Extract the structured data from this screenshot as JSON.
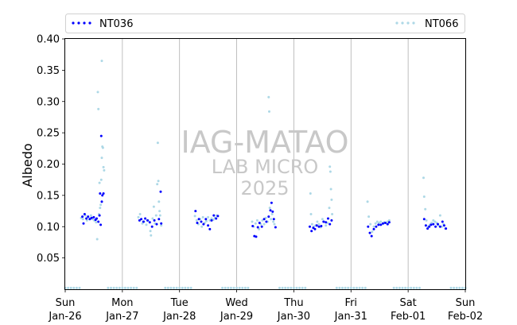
{
  "chart_data": {
    "type": "scatter",
    "ylabel": "Albedo",
    "ylim": [
      0.0,
      0.4
    ],
    "xlim": [
      "2025-01-26",
      "2025-02-02"
    ],
    "yticks": [
      0.05,
      0.1,
      0.15,
      0.2,
      0.25,
      0.3,
      0.35,
      0.4
    ],
    "ytick_labels": [
      "0.05",
      "0.10",
      "0.15",
      "0.20",
      "0.25",
      "0.30",
      "0.35",
      "0.40"
    ],
    "xticks": [
      {
        "day": "Sun",
        "date": "Jan-26"
      },
      {
        "day": "Mon",
        "date": "Jan-27"
      },
      {
        "day": "Tue",
        "date": "Jan-28"
      },
      {
        "day": "Wed",
        "date": "Jan-29"
      },
      {
        "day": "Thu",
        "date": "Jan-30"
      },
      {
        "day": "Fri",
        "date": "Jan-31"
      },
      {
        "day": "Sat",
        "date": "Feb-01"
      },
      {
        "day": "Sun",
        "date": "Feb-02"
      }
    ],
    "grid": "vertical",
    "legend_position": "top",
    "watermark": [
      "IAG-MATAO",
      "LAB MICRO",
      "2025"
    ],
    "series": [
      {
        "name": "NT036",
        "color": "#0000ff",
        "points": [
          [
            0.3,
            0.116
          ],
          [
            0.32,
            0.105
          ],
          [
            0.34,
            0.12
          ],
          [
            0.37,
            0.113
          ],
          [
            0.4,
            0.116
          ],
          [
            0.43,
            0.112
          ],
          [
            0.46,
            0.114
          ],
          [
            0.5,
            0.115
          ],
          [
            0.53,
            0.111
          ],
          [
            0.55,
            0.113
          ],
          [
            0.58,
            0.108
          ],
          [
            0.6,
            0.118
          ],
          [
            0.61,
            0.153
          ],
          [
            0.62,
            0.103
          ],
          [
            0.63,
            0.245
          ],
          [
            0.64,
            0.14
          ],
          [
            0.65,
            0.15
          ],
          [
            0.67,
            0.153
          ],
          [
            1.3,
            0.11
          ],
          [
            1.33,
            0.112
          ],
          [
            1.37,
            0.108
          ],
          [
            1.4,
            0.113
          ],
          [
            1.44,
            0.11
          ],
          [
            1.48,
            0.107
          ],
          [
            1.52,
            0.1
          ],
          [
            1.56,
            0.11
          ],
          [
            1.6,
            0.104
          ],
          [
            1.64,
            0.112
          ],
          [
            1.67,
            0.156
          ],
          [
            1.68,
            0.105
          ],
          [
            2.28,
            0.125
          ],
          [
            2.31,
            0.106
          ],
          [
            2.34,
            0.112
          ],
          [
            2.38,
            0.108
          ],
          [
            2.42,
            0.104
          ],
          [
            2.46,
            0.112
          ],
          [
            2.5,
            0.102
          ],
          [
            2.53,
            0.096
          ],
          [
            2.56,
            0.11
          ],
          [
            2.6,
            0.118
          ],
          [
            2.64,
            0.113
          ],
          [
            2.67,
            0.117
          ],
          [
            3.28,
            0.101
          ],
          [
            3.31,
            0.085
          ],
          [
            3.34,
            0.084
          ],
          [
            3.37,
            0.099
          ],
          [
            3.4,
            0.106
          ],
          [
            3.44,
            0.1
          ],
          [
            3.48,
            0.112
          ],
          [
            3.52,
            0.108
          ],
          [
            3.56,
            0.116
          ],
          [
            3.59,
            0.126
          ],
          [
            3.61,
            0.138
          ],
          [
            3.63,
            0.124
          ],
          [
            3.65,
            0.112
          ],
          [
            3.68,
            0.099
          ],
          [
            4.28,
            0.1
          ],
          [
            4.31,
            0.093
          ],
          [
            4.34,
            0.098
          ],
          [
            4.37,
            0.096
          ],
          [
            4.4,
            0.102
          ],
          [
            4.44,
            0.1
          ],
          [
            4.48,
            0.101
          ],
          [
            4.52,
            0.108
          ],
          [
            4.56,
            0.107
          ],
          [
            4.6,
            0.113
          ],
          [
            4.63,
            0.104
          ],
          [
            4.66,
            0.11
          ],
          [
            5.3,
            0.1
          ],
          [
            5.33,
            0.09
          ],
          [
            5.36,
            0.085
          ],
          [
            5.4,
            0.096
          ],
          [
            5.44,
            0.1
          ],
          [
            5.48,
            0.103
          ],
          [
            5.52,
            0.103
          ],
          [
            5.56,
            0.105
          ],
          [
            5.6,
            0.106
          ],
          [
            5.64,
            0.104
          ],
          [
            5.67,
            0.107
          ],
          [
            6.28,
            0.112
          ],
          [
            6.31,
            0.102
          ],
          [
            6.34,
            0.097
          ],
          [
            6.37,
            0.1
          ],
          [
            6.4,
            0.103
          ],
          [
            6.44,
            0.104
          ],
          [
            6.48,
            0.1
          ],
          [
            6.52,
            0.104
          ],
          [
            6.56,
            0.1
          ],
          [
            6.6,
            0.108
          ],
          [
            6.63,
            0.102
          ],
          [
            6.66,
            0.097
          ]
        ]
      },
      {
        "name": "NT066",
        "color": "#add8e6",
        "points": [
          [
            0.0,
            0.002
          ],
          [
            0.05,
            0.002
          ],
          [
            0.1,
            0.002
          ],
          [
            0.15,
            0.002
          ],
          [
            0.2,
            0.002
          ],
          [
            0.25,
            0.002
          ],
          [
            0.28,
            0.114
          ],
          [
            0.31,
            0.112
          ],
          [
            0.35,
            0.118
          ],
          [
            0.38,
            0.11
          ],
          [
            0.42,
            0.113
          ],
          [
            0.45,
            0.118
          ],
          [
            0.48,
            0.112
          ],
          [
            0.51,
            0.11
          ],
          [
            0.54,
            0.107
          ],
          [
            0.56,
            0.08
          ],
          [
            0.57,
            0.315
          ],
          [
            0.58,
            0.288
          ],
          [
            0.59,
            0.12
          ],
          [
            0.6,
            0.17
          ],
          [
            0.61,
            0.13
          ],
          [
            0.62,
            0.135
          ],
          [
            0.63,
            0.175
          ],
          [
            0.64,
            0.21
          ],
          [
            0.64,
            0.365
          ],
          [
            0.65,
            0.228
          ],
          [
            0.66,
            0.226
          ],
          [
            0.67,
            0.195
          ],
          [
            0.68,
            0.19
          ],
          [
            0.75,
            0.002
          ],
          [
            0.8,
            0.002
          ],
          [
            0.85,
            0.002
          ],
          [
            0.9,
            0.002
          ],
          [
            0.95,
            0.002
          ],
          [
            1.0,
            0.002
          ],
          [
            1.05,
            0.002
          ],
          [
            1.1,
            0.002
          ],
          [
            1.15,
            0.002
          ],
          [
            1.2,
            0.002
          ],
          [
            1.25,
            0.002
          ],
          [
            1.28,
            0.115
          ],
          [
            1.31,
            0.12
          ],
          [
            1.35,
            0.105
          ],
          [
            1.38,
            0.108
          ],
          [
            1.42,
            0.103
          ],
          [
            1.45,
            0.11
          ],
          [
            1.49,
            0.093
          ],
          [
            1.5,
            0.086
          ],
          [
            1.53,
            0.113
          ],
          [
            1.55,
            0.132
          ],
          [
            1.57,
            0.105
          ],
          [
            1.59,
            0.118
          ],
          [
            1.61,
            0.168
          ],
          [
            1.62,
            0.234
          ],
          [
            1.63,
            0.173
          ],
          [
            1.64,
            0.14
          ],
          [
            1.65,
            0.125
          ],
          [
            1.66,
            0.118
          ],
          [
            1.68,
            0.102
          ],
          [
            1.75,
            0.002
          ],
          [
            1.8,
            0.002
          ],
          [
            1.85,
            0.002
          ],
          [
            1.9,
            0.002
          ],
          [
            1.95,
            0.002
          ],
          [
            2.0,
            0.002
          ],
          [
            2.05,
            0.002
          ],
          [
            2.1,
            0.002
          ],
          [
            2.15,
            0.002
          ],
          [
            2.2,
            0.002
          ],
          [
            2.27,
            0.117
          ],
          [
            2.3,
            0.11
          ],
          [
            2.33,
            0.104
          ],
          [
            2.36,
            0.112
          ],
          [
            2.39,
            0.1
          ],
          [
            2.41,
            0.115
          ],
          [
            2.44,
            0.106
          ],
          [
            2.47,
            0.109
          ],
          [
            2.5,
            0.115
          ],
          [
            2.53,
            0.11
          ],
          [
            2.56,
            0.113
          ],
          [
            2.59,
            0.111
          ],
          [
            2.62,
            0.114
          ],
          [
            2.65,
            0.118
          ],
          [
            2.75,
            0.002
          ],
          [
            2.8,
            0.002
          ],
          [
            2.85,
            0.002
          ],
          [
            2.9,
            0.002
          ],
          [
            2.95,
            0.002
          ],
          [
            3.0,
            0.002
          ],
          [
            3.05,
            0.002
          ],
          [
            3.1,
            0.002
          ],
          [
            3.15,
            0.002
          ],
          [
            3.2,
            0.002
          ],
          [
            3.27,
            0.108
          ],
          [
            3.3,
            0.1
          ],
          [
            3.33,
            0.105
          ],
          [
            3.36,
            0.11
          ],
          [
            3.39,
            0.096
          ],
          [
            3.42,
            0.104
          ],
          [
            3.45,
            0.11
          ],
          [
            3.48,
            0.104
          ],
          [
            3.51,
            0.114
          ],
          [
            3.54,
            0.108
          ],
          [
            3.56,
            0.307
          ],
          [
            3.57,
            0.284
          ],
          [
            3.58,
            0.13
          ],
          [
            3.6,
            0.112
          ],
          [
            3.62,
            0.12
          ],
          [
            3.64,
            0.108
          ],
          [
            3.66,
            0.104
          ],
          [
            3.75,
            0.002
          ],
          [
            3.8,
            0.002
          ],
          [
            3.85,
            0.002
          ],
          [
            3.9,
            0.002
          ],
          [
            3.95,
            0.002
          ],
          [
            4.0,
            0.002
          ],
          [
            4.05,
            0.002
          ],
          [
            4.1,
            0.002
          ],
          [
            4.15,
            0.002
          ],
          [
            4.2,
            0.002
          ],
          [
            4.29,
            0.153
          ],
          [
            4.3,
            0.12
          ],
          [
            4.32,
            0.104
          ],
          [
            4.35,
            0.1
          ],
          [
            4.38,
            0.102
          ],
          [
            4.41,
            0.108
          ],
          [
            4.44,
            0.104
          ],
          [
            4.47,
            0.099
          ],
          [
            4.5,
            0.112
          ],
          [
            4.53,
            0.108
          ],
          [
            4.56,
            0.102
          ],
          [
            4.59,
            0.106
          ],
          [
            4.62,
            0.13
          ],
          [
            4.63,
            0.196
          ],
          [
            4.64,
            0.188
          ],
          [
            4.65,
            0.16
          ],
          [
            4.66,
            0.143
          ],
          [
            4.67,
            0.12
          ],
          [
            4.75,
            0.002
          ],
          [
            4.8,
            0.002
          ],
          [
            4.85,
            0.002
          ],
          [
            4.9,
            0.002
          ],
          [
            4.95,
            0.002
          ],
          [
            5.0,
            0.002
          ],
          [
            5.05,
            0.002
          ],
          [
            5.1,
            0.002
          ],
          [
            5.15,
            0.002
          ],
          [
            5.2,
            0.002
          ],
          [
            5.25,
            0.002
          ],
          [
            5.29,
            0.14
          ],
          [
            5.31,
            0.116
          ],
          [
            5.34,
            0.104
          ],
          [
            5.37,
            0.092
          ],
          [
            5.4,
            0.1
          ],
          [
            5.43,
            0.105
          ],
          [
            5.46,
            0.108
          ],
          [
            5.49,
            0.106
          ],
          [
            5.52,
            0.108
          ],
          [
            5.55,
            0.104
          ],
          [
            5.58,
            0.107
          ],
          [
            5.61,
            0.106
          ],
          [
            5.64,
            0.108
          ],
          [
            5.67,
            0.11
          ],
          [
            5.75,
            0.002
          ],
          [
            5.8,
            0.002
          ],
          [
            5.85,
            0.002
          ],
          [
            5.9,
            0.002
          ],
          [
            5.95,
            0.002
          ],
          [
            6.0,
            0.002
          ],
          [
            6.05,
            0.002
          ],
          [
            6.1,
            0.002
          ],
          [
            6.15,
            0.002
          ],
          [
            6.2,
            0.002
          ],
          [
            6.27,
            0.178
          ],
          [
            6.28,
            0.148
          ],
          [
            6.3,
            0.128
          ],
          [
            6.32,
            0.11
          ],
          [
            6.35,
            0.1
          ],
          [
            6.38,
            0.103
          ],
          [
            6.41,
            0.106
          ],
          [
            6.44,
            0.11
          ],
          [
            6.47,
            0.108
          ],
          [
            6.5,
            0.106
          ],
          [
            6.53,
            0.102
          ],
          [
            6.56,
            0.118
          ],
          [
            6.59,
            0.1
          ],
          [
            6.62,
            0.104
          ],
          [
            6.65,
            0.097
          ],
          [
            6.75,
            0.002
          ],
          [
            6.8,
            0.002
          ],
          [
            6.85,
            0.002
          ],
          [
            6.9,
            0.002
          ],
          [
            6.95,
            0.002
          ],
          [
            7.0,
            0.002
          ]
        ]
      }
    ]
  }
}
